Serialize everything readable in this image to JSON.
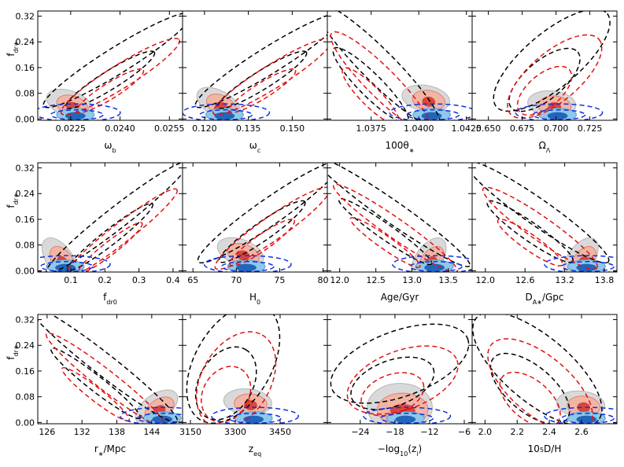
{
  "ylabel": [
    {
      "text": "f"
    },
    {
      "text": "dr∗",
      "shift": "sub"
    }
  ],
  "ylim": [
    -0.004,
    0.336
  ],
  "yticks": [
    {
      "value": 0,
      "label": "0.00"
    },
    {
      "value": 0.08,
      "label": "0.08"
    },
    {
      "value": 0.16,
      "label": "0.16"
    },
    {
      "value": 0.24,
      "label": "0.24"
    },
    {
      "value": 0.32,
      "label": "0.32"
    }
  ],
  "chart_data": [
    {
      "type": "contour",
      "xlabel": [
        {
          "text": "ω"
        },
        {
          "text": "b",
          "shift": "sub"
        }
      ],
      "xlim": [
        0.0215,
        0.0259
      ],
      "xticks": [
        0.0225,
        {
          "value": 0.024,
          "label": "0.0240"
        },
        0.0255
      ]
    },
    {
      "type": "contour",
      "xlabel": [
        {
          "text": "ω"
        },
        {
          "text": "c",
          "shift": "sub"
        }
      ],
      "xlim": [
        0.1125,
        0.162
      ],
      "xticks": [
        {
          "value": 0.12,
          "label": "0.120"
        },
        0.135,
        {
          "value": 0.15,
          "label": "0.150"
        }
      ]
    },
    {
      "type": "contour",
      "xlabel": [
        {
          "text": "100θ"
        },
        {
          "text": "∗",
          "shift": "sub"
        }
      ],
      "xlim": [
        1.0352,
        1.0428
      ],
      "xticks": [
        1.0375,
        {
          "value": 1.04,
          "label": "1.0400"
        },
        1.0425
      ]
    },
    {
      "type": "contour",
      "xlabel": [
        {
          "text": "Ω"
        },
        {
          "text": "Λ",
          "shift": "sub"
        }
      ],
      "xlim": [
        0.638,
        0.745
      ],
      "xticks": [
        {
          "value": 0.65,
          "label": "0.650"
        },
        0.675,
        {
          "value": 0.7,
          "label": "0.700"
        },
        0.725
      ]
    },
    {
      "type": "contour",
      "xlabel": [
        {
          "text": "f"
        },
        {
          "text": "dr0",
          "shift": "sub"
        }
      ],
      "xlim": [
        0.003,
        0.428
      ],
      "xticks": [
        0.1,
        0.2,
        0.3,
        0.4
      ]
    },
    {
      "type": "contour",
      "xlabel": [
        {
          "text": "H"
        },
        {
          "text": "0",
          "shift": "sub"
        }
      ],
      "xlim": [
        63.8,
        80.5
      ],
      "xticks": [
        65,
        70,
        75,
        80
      ]
    },
    {
      "type": "contour",
      "xlabel": [
        {
          "text": "Age/Gyr"
        }
      ],
      "xlim": [
        11.83,
        13.83
      ],
      "xticks": [
        {
          "value": 12,
          "label": "12.0"
        },
        12.5,
        {
          "value": 13,
          "label": "13.0"
        },
        13.5
      ]
    },
    {
      "type": "contour",
      "xlabel": [
        {
          "text": "D"
        },
        {
          "text": "A∗",
          "shift": "sub"
        },
        {
          "text": "/Gpc"
        }
      ],
      "xlim": [
        11.8,
        13.99
      ],
      "xticks": [
        {
          "value": 12,
          "label": "12.0"
        },
        12.6,
        13.2,
        13.8
      ]
    },
    {
      "type": "contour",
      "xlabel": [
        {
          "text": "r"
        },
        {
          "text": "∗",
          "shift": "sub"
        },
        {
          "text": "/Mpc"
        }
      ],
      "xlim": [
        124.4,
        149.3
      ],
      "xticks": [
        126,
        132,
        138,
        144
      ]
    },
    {
      "type": "contour",
      "xlabel": [
        {
          "text": "z"
        },
        {
          "text": "eq",
          "shift": "sub"
        }
      ],
      "xlim": [
        3123.7,
        3608
      ],
      "xticks": [
        3150,
        3300,
        3450
      ]
    },
    {
      "type": "contour",
      "xlabel": [
        {
          "text": "−log"
        },
        {
          "text": "10",
          "shift": "sub"
        },
        {
          "text": "(z"
        },
        {
          "text": "i",
          "shift": "sub"
        },
        {
          "text": ")"
        }
      ],
      "xlim": [
        -29.7,
        -4.64
      ],
      "xticks": [
        {
          "value": -24,
          "label": "−24"
        },
        {
          "value": -18,
          "label": "−18"
        },
        {
          "value": -12,
          "label": "−12"
        },
        {
          "value": -6,
          "label": "−6"
        }
      ]
    },
    {
      "type": "contour",
      "xlabel": [
        {
          "text": "10"
        },
        {
          "text": "5",
          "shift": "sup"
        },
        {
          "text": "D/H"
        }
      ],
      "xlim": [
        1.92,
        2.82
      ],
      "xticks": [
        {
          "value": 2,
          "label": "2.0"
        },
        2.2,
        2.4,
        2.6
      ]
    }
  ]
}
